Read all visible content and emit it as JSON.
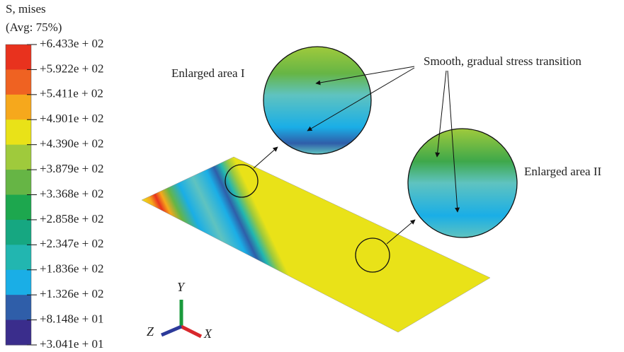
{
  "legend": {
    "title": "S, mises",
    "subtitle": "(Avg: 75%)",
    "labels": [
      "+6.433e + 02",
      "+5.922e + 02",
      "+5.411e + 02",
      "+4.901e + 02",
      "+4.390e + 02",
      "+3.879e + 02",
      "+3.368e + 02",
      "+2.858e + 02",
      "+2.347e + 02",
      "+1.836e + 02",
      "+1.326e + 02",
      "+8.148e + 01",
      "+3.041e + 01"
    ],
    "colors": [
      "#e8321e",
      "#ef6222",
      "#f6a81c",
      "#e9e218",
      "#9fca3c",
      "#66b545",
      "#3ea84a",
      "#1da74e",
      "#16a781",
      "#22b6b0",
      "#1aaee6",
      "#2f5ea9",
      "#3a2d8c"
    ]
  },
  "annotations": {
    "area1": "Enlarged area I",
    "area2": "Enlarged area II",
    "note": "Smooth, gradual stress transition"
  },
  "axes": {
    "y": "Y",
    "z": "Z",
    "x": "X"
  }
}
